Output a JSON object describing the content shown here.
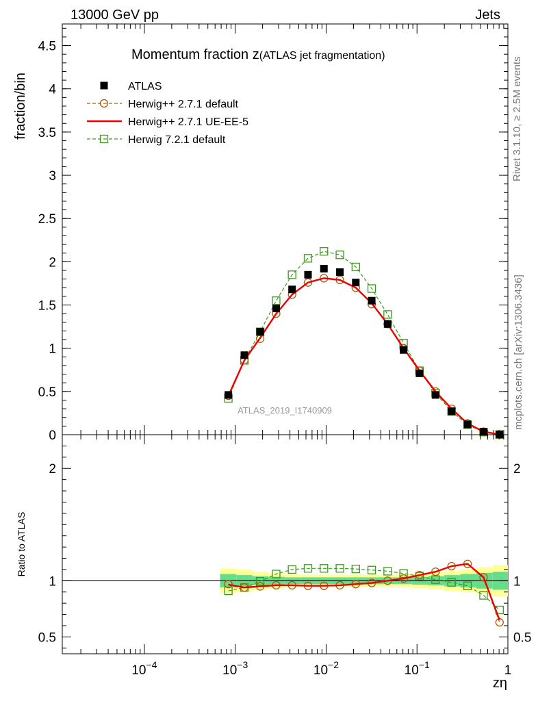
{
  "header": {
    "left": "13000 GeV pp",
    "right": "Jets"
  },
  "side_labels": {
    "rivet": "Rivet 3.1.10, ≥ 2.5M events",
    "mcplots": "mcplots.cern.ch [arXiv:1306.3436]"
  },
  "chart_data": {
    "type": "line",
    "title_main": "Momentum fraction z",
    "title_sub": "(ATLAS jet fragmentation)",
    "analysis_tag": "ATLAS_2019_I1740909",
    "xlabel": "zη",
    "xscale": "log",
    "xlim": [
      1.25e-05,
      1.0
    ],
    "x_tick_labels": [
      "10−4",
      "10−3",
      "10−2",
      "10−1",
      "1"
    ],
    "x_tick_values": [
      0.0001,
      0.001,
      0.01,
      0.1,
      1
    ],
    "main_panel": {
      "ylabel": "fraction/bin",
      "ylim": [
        0,
        4.75
      ],
      "ytick_values": [
        0,
        0.5,
        1,
        1.5,
        2,
        2.5,
        3,
        3.5,
        4,
        4.5
      ],
      "ytick_labels": [
        "0",
        "0.5",
        "1",
        "1.5",
        "2",
        "2.5",
        "3",
        "3.5",
        "4",
        "4.5"
      ]
    },
    "ratio_panel": {
      "ylabel": "Ratio to ATLAS",
      "ylim": [
        0.35,
        2.3
      ],
      "ytick_values": [
        0.5,
        1,
        2
      ],
      "ytick_labels": [
        "0.5",
        "1",
        "2"
      ]
    },
    "x": [
      0.00084,
      0.00126,
      0.00188,
      0.00282,
      0.00422,
      0.00632,
      0.00946,
      0.01417,
      0.02121,
      0.03175,
      0.04753,
      0.07116,
      0.10654,
      0.16,
      0.24,
      0.36,
      0.54,
      0.81
    ],
    "series": [
      {
        "name": "ATLAS",
        "style": "data",
        "color": "#000000",
        "values": [
          0.46,
          0.92,
          1.19,
          1.46,
          1.68,
          1.85,
          1.92,
          1.88,
          1.76,
          1.55,
          1.28,
          0.98,
          0.71,
          0.46,
          0.27,
          0.12,
          0.035,
          0.003
        ]
      },
      {
        "name": "Herwig++ 2.7.1 default",
        "style": "dashed-circle",
        "color": "#b05a00",
        "values": [
          0.45,
          0.86,
          1.11,
          1.4,
          1.62,
          1.76,
          1.81,
          1.79,
          1.7,
          1.51,
          1.28,
          1.0,
          0.74,
          0.5,
          0.3,
          0.13,
          0.035,
          0.002
        ],
        "ratio": [
          0.97,
          0.94,
          0.95,
          0.96,
          0.96,
          0.955,
          0.955,
          0.96,
          0.97,
          0.98,
          1.0,
          1.02,
          1.05,
          1.08,
          1.13,
          1.15,
          1.03,
          0.63
        ]
      },
      {
        "name": "Herwig++ 2.7.1 UE-EE-5",
        "style": "solid",
        "color": "#ee0000",
        "values": [
          0.45,
          0.86,
          1.12,
          1.4,
          1.62,
          1.76,
          1.81,
          1.79,
          1.7,
          1.52,
          1.28,
          1.0,
          0.74,
          0.5,
          0.3,
          0.13,
          0.035,
          0.002
        ],
        "ratio": [
          0.965,
          0.94,
          0.95,
          0.96,
          0.96,
          0.955,
          0.955,
          0.96,
          0.97,
          0.98,
          1.0,
          1.02,
          1.05,
          1.08,
          1.13,
          1.15,
          1.03,
          0.65
        ]
      },
      {
        "name": "Herwig 7.2.1 default",
        "style": "dashed-square",
        "color": "#3a9a1a",
        "values": [
          0.42,
          0.86,
          1.19,
          1.55,
          1.85,
          2.04,
          2.12,
          2.08,
          1.94,
          1.69,
          1.39,
          1.06,
          0.74,
          0.48,
          0.27,
          0.115,
          0.03,
          0.002
        ],
        "ratio": [
          0.91,
          0.94,
          0.995,
          1.06,
          1.1,
          1.11,
          1.11,
          1.11,
          1.105,
          1.095,
          1.085,
          1.065,
          1.04,
          1.01,
          0.985,
          0.955,
          0.87,
          0.74
        ]
      }
    ],
    "uncertainty_band": {
      "x_edges": [
        0.00068,
        0.00103,
        0.00154,
        0.00231,
        0.00347,
        0.0052,
        0.0078,
        0.0117,
        0.0175,
        0.0263,
        0.0394,
        0.0591,
        0.0886,
        0.133,
        0.2,
        0.3,
        0.45,
        0.68,
        1.0
      ],
      "stat_syst_inner": [
        0.06,
        0.05,
        0.04,
        0.035,
        0.03,
        0.03,
        0.03,
        0.03,
        0.03,
        0.03,
        0.03,
        0.03,
        0.035,
        0.04,
        0.05,
        0.06,
        0.07,
        0.08
      ],
      "total_outer": [
        0.11,
        0.1,
        0.08,
        0.07,
        0.06,
        0.055,
        0.055,
        0.055,
        0.055,
        0.055,
        0.055,
        0.06,
        0.065,
        0.075,
        0.09,
        0.1,
        0.12,
        0.14
      ],
      "inner_color": "#66dd88",
      "outer_color": "#ffff99"
    }
  }
}
